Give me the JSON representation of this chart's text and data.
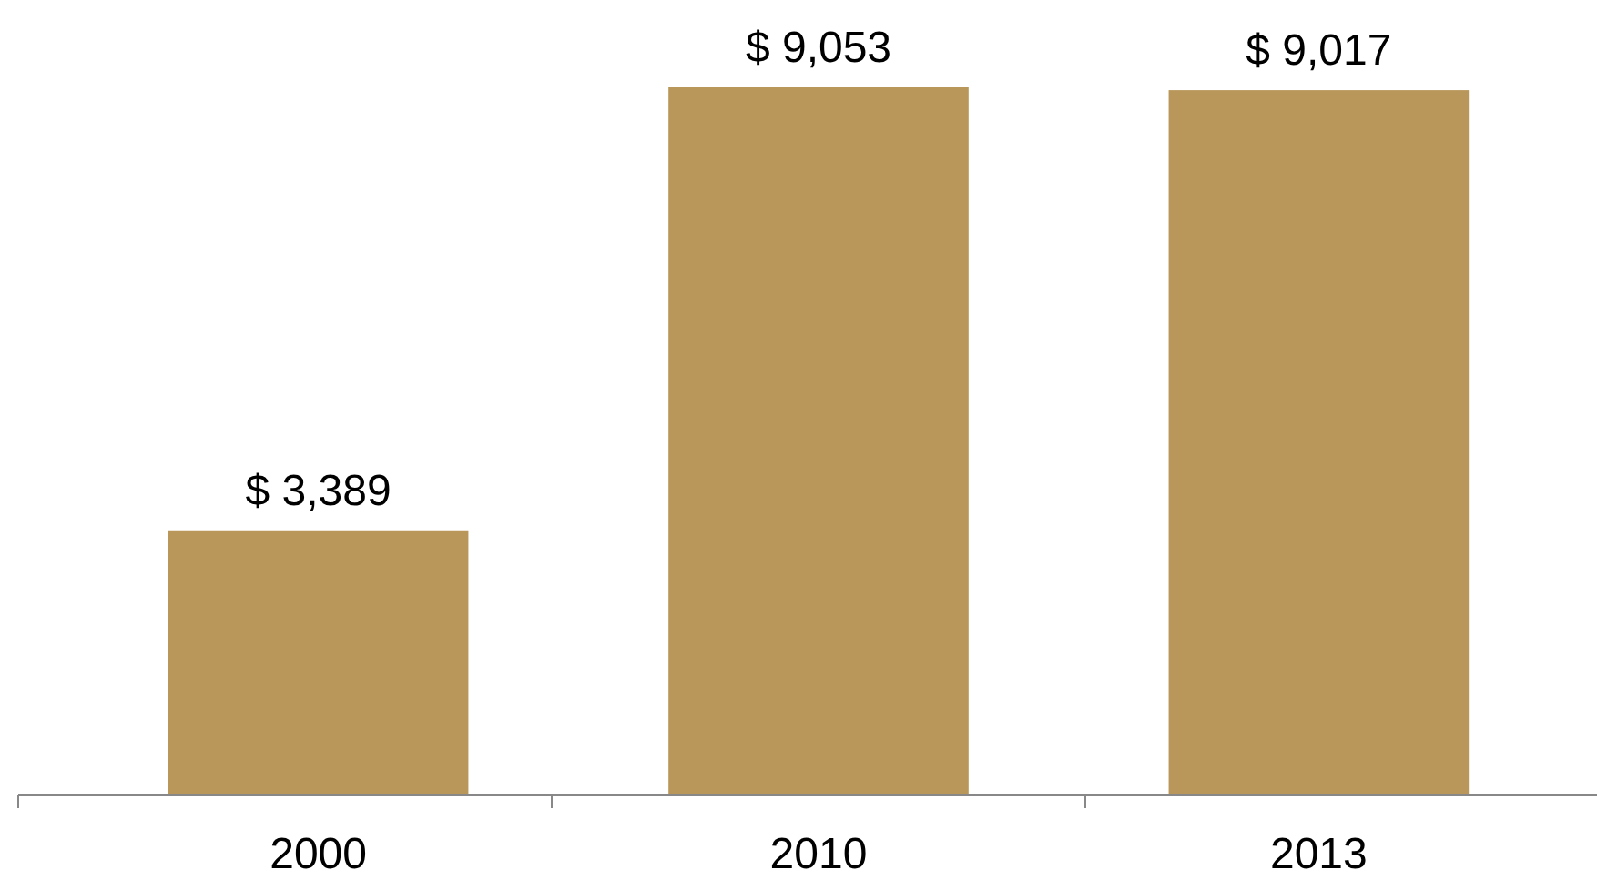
{
  "chart_data": {
    "type": "bar",
    "categories": [
      "2000",
      "2010",
      "2013"
    ],
    "values": [
      3389,
      9053,
      9017
    ],
    "value_labels": [
      "$ 3,389",
      "$ 9,053",
      "$ 9,017"
    ],
    "color": "#b9975b"
  }
}
